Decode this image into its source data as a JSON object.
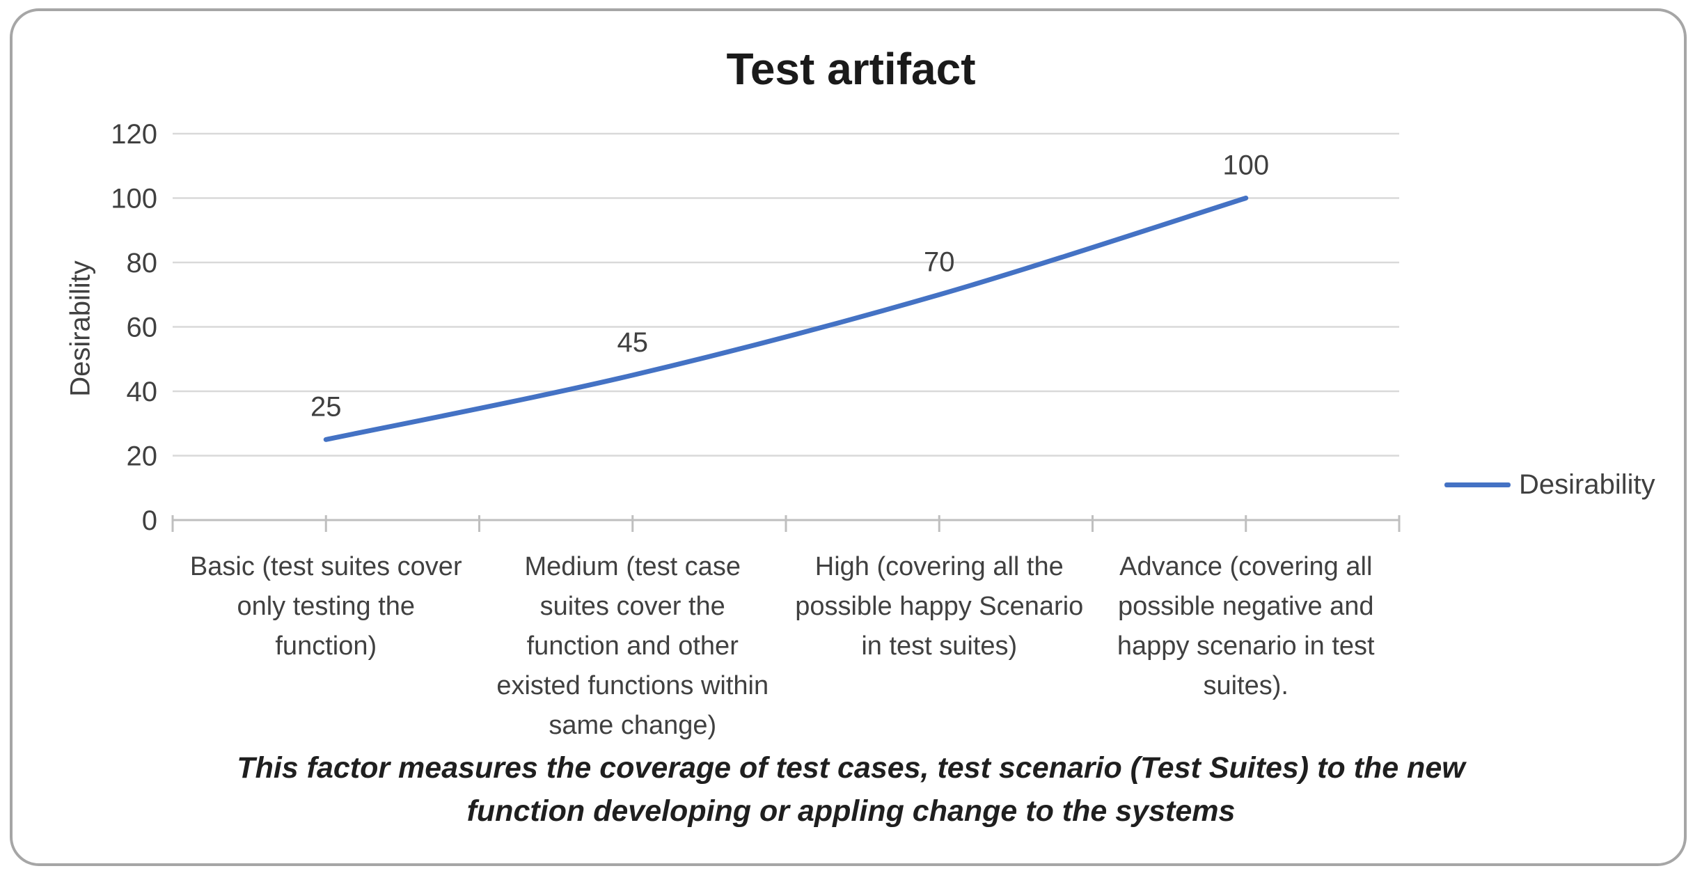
{
  "chart_data": {
    "type": "line",
    "title": "Test artifact",
    "ylabel": "Desirability",
    "xlabel": "",
    "categories": [
      "Basic (test suites cover\nonly testing the\nfunction)",
      "Medium (test case\nsuites cover the\nfunction and other\nexisted functions within\nsame change)",
      "High (covering all the\npossible happy Scenario\nin test suites)",
      "Advance (covering all\npossible negative and\nhappy scenario in test\nsuites)."
    ],
    "series": [
      {
        "name": "Desirability",
        "values": [
          25,
          45,
          70,
          100
        ]
      }
    ],
    "data_labels": [
      "25",
      "45",
      "70",
      "100"
    ],
    "ylim": [
      0,
      120
    ],
    "yticks": [
      0,
      20,
      40,
      60,
      80,
      100,
      120
    ],
    "grid": true,
    "smooth": true,
    "legend_position": "right"
  },
  "legend": {
    "label": "Desirability"
  },
  "caption": "This factor measures the coverage of test cases, test scenario (Test Suites) to the new\nfunction developing or appling change to the systems",
  "colors": {
    "series": "#4472C4",
    "gridline": "#D9D9D9",
    "axis": "#BFBFBF",
    "text": "#404040",
    "title": "#1A1A1A"
  }
}
